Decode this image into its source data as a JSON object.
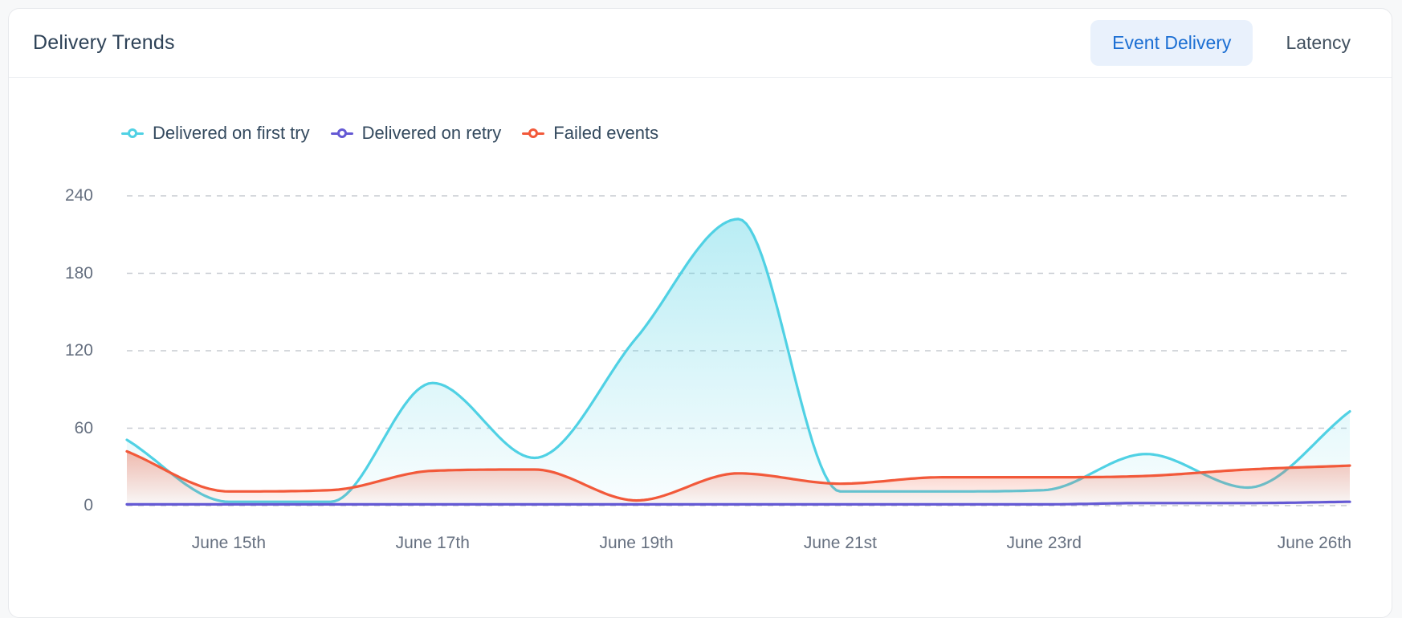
{
  "header": {
    "title": "Delivery Trends",
    "tabs": [
      {
        "label": "Event Delivery",
        "active": true
      },
      {
        "label": "Latency",
        "active": false
      }
    ]
  },
  "colors": {
    "active_tab_bg": "#e9f1fc",
    "active_tab_text": "#1c6fd3",
    "grid": "#c7cbd1",
    "axis_text": "#667080",
    "legend_text": "#33495e",
    "first_try": "#50d1e4",
    "retry": "#6459d4",
    "failed": "#f2593a"
  },
  "chart_data": {
    "type": "area",
    "title": "Delivery Trends",
    "n_points": 13,
    "x_ticks": [
      {
        "i": 1,
        "label": "June 15th"
      },
      {
        "i": 3,
        "label": "June 17th"
      },
      {
        "i": 5,
        "label": "June 19th"
      },
      {
        "i": 7,
        "label": "June 21st"
      },
      {
        "i": 9,
        "label": "June 23rd"
      },
      {
        "i": 12,
        "label": "June 26th"
      }
    ],
    "series": [
      {
        "name": "Delivered on first try",
        "color": "#50d1e4",
        "area": true,
        "values": [
          51,
          3,
          3,
          95,
          37,
          130,
          222,
          11,
          11,
          12,
          40,
          14,
          73
        ]
      },
      {
        "name": "Delivered on retry",
        "color": "#6459d4",
        "area": false,
        "values": [
          1,
          1,
          1,
          1,
          1,
          1,
          1,
          1,
          1,
          1,
          2,
          2,
          3
        ]
      },
      {
        "name": "Failed events",
        "color": "#f2593a",
        "area": true,
        "values": [
          42,
          11,
          12,
          27,
          28,
          4,
          25,
          17,
          22,
          22,
          23,
          28,
          31
        ]
      }
    ],
    "ylim": [
      0,
      240
    ],
    "yticks": [
      0,
      60,
      120,
      180,
      240
    ],
    "grid": "horizontal dashed",
    "legend_position": "top-left",
    "xlabel": "",
    "ylabel": ""
  }
}
